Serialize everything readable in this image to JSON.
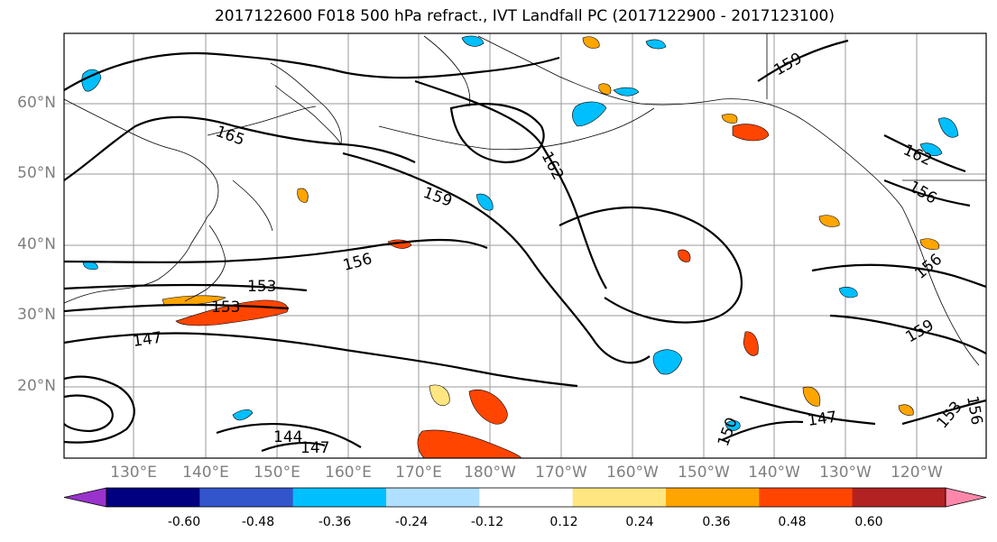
{
  "title": "2017122600 F018 500 hPa refract., IVT Landfall PC (2017122900 - 2017123100)",
  "lat_labels": [
    "60°N",
    "50°N",
    "40°N",
    "30°N",
    "20°N"
  ],
  "lon_labels": [
    "130°E",
    "140°E",
    "150°E",
    "160°E",
    "170°E",
    "180°W",
    "170°W",
    "160°W",
    "150°W",
    "140°W",
    "130°W",
    "120°W"
  ],
  "colorbar": {
    "colors": [
      "#9933cc",
      "#000080",
      "#3355cc",
      "#00bfff",
      "#b0e0ff",
      "#ffffff",
      "#ffe680",
      "#ffa500",
      "#ff4500",
      "#b22222",
      "#ff88aa"
    ],
    "tick_labels": [
      "-0.60",
      "-0.48",
      "-0.36",
      "-0.24",
      "-0.12",
      "0.12",
      "0.24",
      "0.36",
      "0.48",
      "0.60"
    ]
  },
  "contour_labels": [
    "165",
    "162",
    "159",
    "156",
    "153",
    "153",
    "147",
    "144",
    "147",
    "159",
    "162",
    "156",
    "156",
    "159",
    "147",
    "150",
    "153",
    "156"
  ]
}
